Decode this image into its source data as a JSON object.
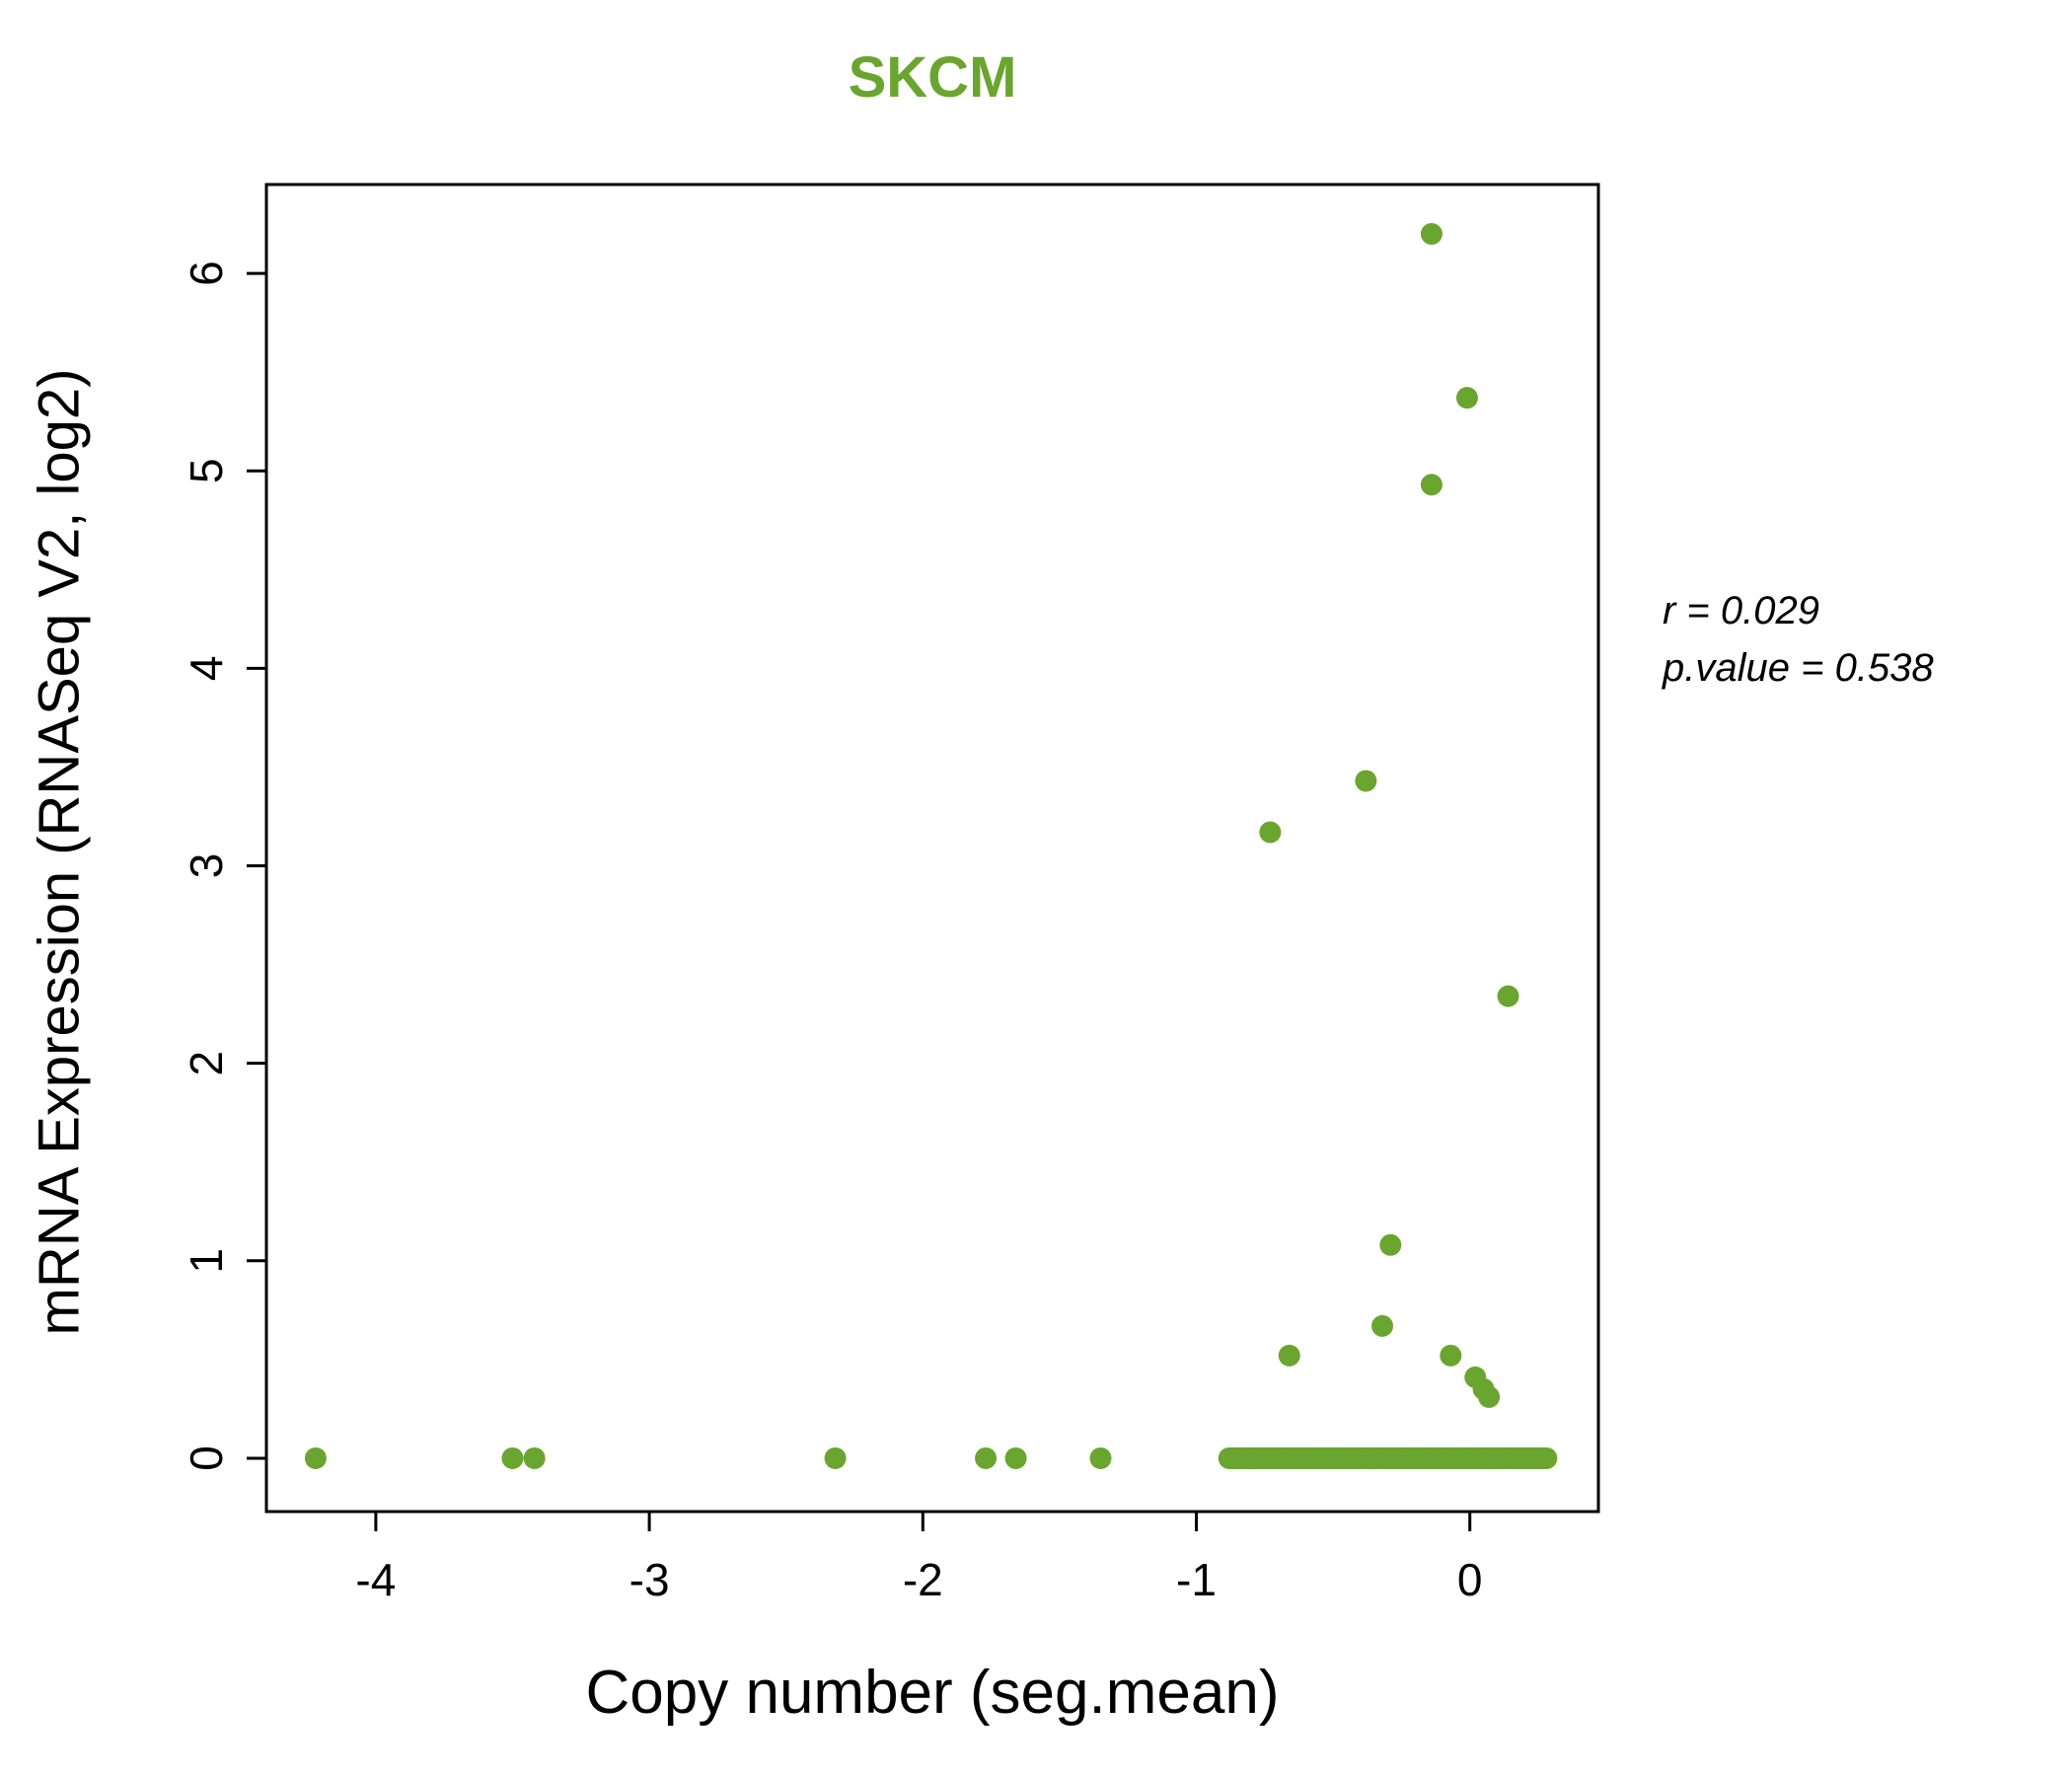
{
  "title": "SKCM",
  "annotation": {
    "line1": "r = 0.029",
    "line2": "p.value = 0.538"
  },
  "chart_data": {
    "type": "scatter",
    "title": "SKCM",
    "xlabel": "Copy number (seg.mean)",
    "ylabel": "mRNA Expression (RNASeq V2, log2)",
    "xlim": [
      -4.4,
      0.47
    ],
    "ylim": [
      -0.27,
      6.45
    ],
    "x_ticks": [
      -4,
      -3,
      -2,
      -1,
      0
    ],
    "y_ticks": [
      0,
      1,
      2,
      3,
      4,
      5,
      6
    ],
    "grid": false,
    "legend": "none",
    "point_color": "#6aa52f",
    "title_color": "#6aa52f",
    "r": 0.029,
    "p_value": 0.538,
    "points": [
      {
        "x": -0.14,
        "y": 6.2
      },
      {
        "x": -0.01,
        "y": 5.37
      },
      {
        "x": -0.14,
        "y": 4.93
      },
      {
        "x": -0.38,
        "y": 3.43
      },
      {
        "x": -0.73,
        "y": 3.17
      },
      {
        "x": 0.14,
        "y": 2.34
      },
      {
        "x": -0.29,
        "y": 1.08
      },
      {
        "x": -0.32,
        "y": 0.67
      },
      {
        "x": -0.66,
        "y": 0.52
      },
      {
        "x": -0.07,
        "y": 0.52
      },
      {
        "x": 0.02,
        "y": 0.41
      },
      {
        "x": 0.05,
        "y": 0.35
      },
      {
        "x": 0.07,
        "y": 0.31
      },
      {
        "x": -4.22,
        "y": 0
      },
      {
        "x": -3.5,
        "y": 0
      },
      {
        "x": -3.42,
        "y": 0
      },
      {
        "x": -2.32,
        "y": 0
      },
      {
        "x": -1.77,
        "y": 0
      },
      {
        "x": -1.66,
        "y": 0
      },
      {
        "x": -1.35,
        "y": 0
      }
    ],
    "zero_band": {
      "y": 0,
      "x_min": -0.88,
      "x_max": 0.28,
      "n": 150
    }
  }
}
